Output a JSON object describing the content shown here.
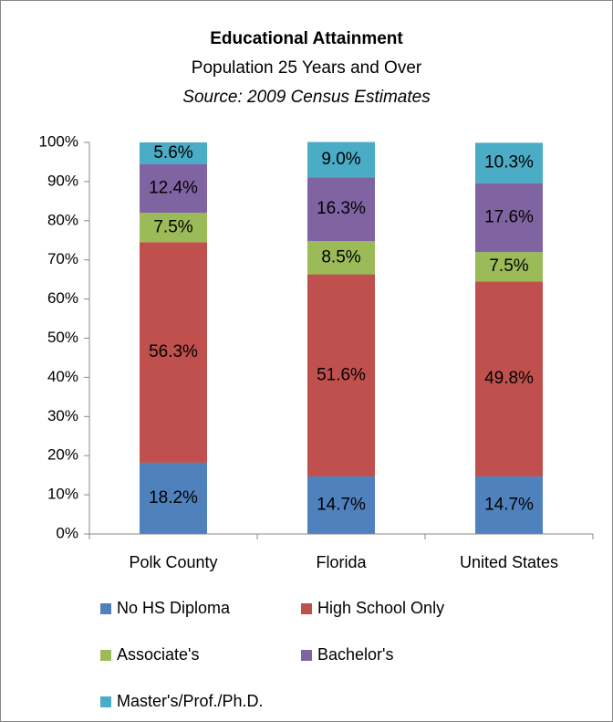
{
  "chart_data": {
    "type": "stacked_bar",
    "title": "Educational Attainment",
    "subtitle": "Population 25 Years and Over",
    "source": "Source: 2009 Census Estimates",
    "categories": [
      "Polk County",
      "Florida",
      "United States"
    ],
    "series": [
      {
        "name": "No HS Diploma",
        "color": "#4f81bd",
        "values": [
          18.2,
          14.7,
          14.7
        ],
        "value_labels": [
          "18.2%",
          "14.7%",
          "14.7%"
        ]
      },
      {
        "name": "High School Only",
        "color": "#c0504d",
        "values": [
          56.3,
          51.6,
          49.8
        ],
        "value_labels": [
          "56.3%",
          "51.6%",
          "49.8%"
        ]
      },
      {
        "name": "Associate's",
        "color": "#9bbb59",
        "values": [
          7.5,
          8.5,
          7.5
        ],
        "value_labels": [
          "7.5%",
          "8.5%",
          "7.5%"
        ]
      },
      {
        "name": "Bachelor's",
        "color": "#8064a2",
        "values": [
          12.4,
          16.3,
          17.6
        ],
        "value_labels": [
          "12.4%",
          "16.3%",
          "17.6%"
        ]
      },
      {
        "name": "Master's/Prof./Ph.D.",
        "color": "#4bacc6",
        "values": [
          5.6,
          9.0,
          10.3
        ],
        "value_labels": [
          "5.6%",
          "9.0%",
          "10.3%"
        ]
      }
    ],
    "ylim": [
      0,
      100
    ],
    "yticks": [
      {
        "value": 0,
        "label": "0%"
      },
      {
        "value": 10,
        "label": "10%"
      },
      {
        "value": 20,
        "label": "20%"
      },
      {
        "value": 30,
        "label": "30%"
      },
      {
        "value": 40,
        "label": "40%"
      },
      {
        "value": 50,
        "label": "50%"
      },
      {
        "value": 60,
        "label": "60%"
      },
      {
        "value": 70,
        "label": "70%"
      },
      {
        "value": 80,
        "label": "80%"
      },
      {
        "value": 90,
        "label": "90%"
      },
      {
        "value": 100,
        "label": "100%"
      }
    ],
    "grid": false,
    "legend": "bottom"
  }
}
